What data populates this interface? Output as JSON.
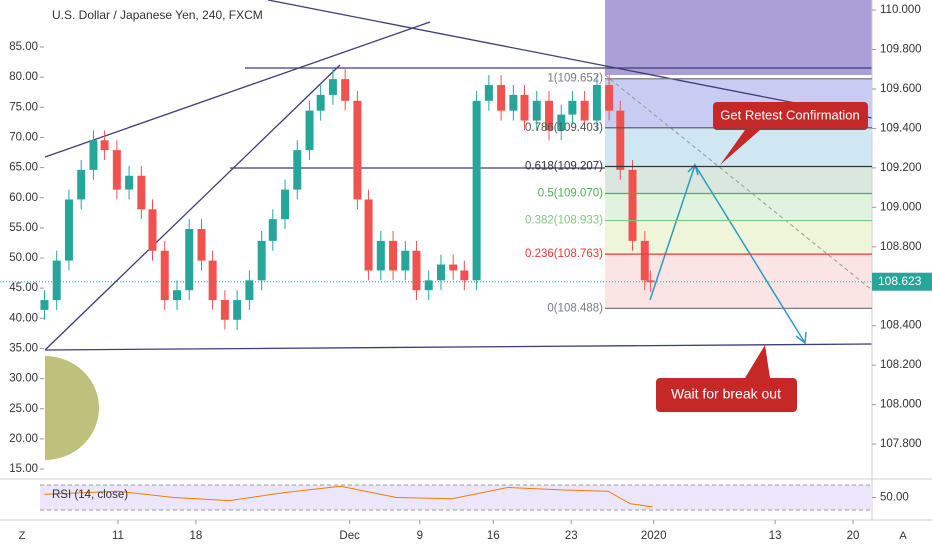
{
  "chart_data": {
    "type": "candlestick",
    "title": "U.S. Dollar / Japanese Yen, 240, FXCM",
    "up_color": "#26a69a",
    "down_color": "#ef5350",
    "x": [
      -6.6,
      -5.5,
      -4.4,
      -3.3,
      -2.2,
      -1.2,
      -0.1,
      1.0,
      2.1,
      3.1,
      4.2,
      5.3,
      6.4,
      7.5,
      8.5,
      9.6,
      10.7,
      11.8,
      12.9,
      13.9,
      15.0,
      16.1,
      17.2,
      18.2,
      19.3,
      20.4,
      21.5,
      22.5,
      23.6,
      24.7,
      25.8,
      26.8,
      27.9,
      29.0,
      30.1,
      31.1,
      32.2,
      33.3,
      34.4,
      35.5,
      36.5,
      37.6,
      38.7,
      39.8,
      40.8,
      41.9,
      43.0,
      44.1,
      45.1,
      46.2,
      47.3,
      47.8
    ],
    "open": [
      108.48,
      108.53,
      108.73,
      109.04,
      109.19,
      109.34,
      109.29,
      109.09,
      109.16,
      108.99,
      108.78,
      108.53,
      108.58,
      108.89,
      108.73,
      108.53,
      108.43,
      108.53,
      108.63,
      108.83,
      108.94,
      109.09,
      109.29,
      109.49,
      109.57,
      109.65,
      109.54,
      109.04,
      108.68,
      108.83,
      108.68,
      108.78,
      108.58,
      108.63,
      108.71,
      108.68,
      108.63,
      109.54,
      109.62,
      109.49,
      109.57,
      109.44,
      109.54,
      109.39,
      109.47,
      109.54,
      109.44,
      109.62,
      109.49,
      109.19,
      108.83,
      108.63
    ],
    "high": [
      108.58,
      108.78,
      109.09,
      109.24,
      109.39,
      109.39,
      109.34,
      109.21,
      109.21,
      109.04,
      108.83,
      108.63,
      108.94,
      108.94,
      108.78,
      108.58,
      108.58,
      108.68,
      108.88,
      108.99,
      109.14,
      109.34,
      109.54,
      109.62,
      109.7,
      109.7,
      109.59,
      109.09,
      108.88,
      108.88,
      108.83,
      108.83,
      108.68,
      108.76,
      108.76,
      108.73,
      109.59,
      109.67,
      109.67,
      109.62,
      109.62,
      109.59,
      109.59,
      109.52,
      109.59,
      109.59,
      109.67,
      109.67,
      109.54,
      109.24,
      108.88,
      108.68
    ],
    "low": [
      108.43,
      108.48,
      108.68,
      108.99,
      109.14,
      109.24,
      109.04,
      109.04,
      108.94,
      108.73,
      108.48,
      108.48,
      108.53,
      108.68,
      108.48,
      108.38,
      108.38,
      108.48,
      108.58,
      108.78,
      108.89,
      109.04,
      109.24,
      109.44,
      109.52,
      109.49,
      108.99,
      108.63,
      108.63,
      108.63,
      108.63,
      108.53,
      108.53,
      108.58,
      108.63,
      108.58,
      108.58,
      109.49,
      109.44,
      109.44,
      109.39,
      109.39,
      109.34,
      109.34,
      109.42,
      109.39,
      109.39,
      109.44,
      109.14,
      108.78,
      108.58,
      108.57
    ],
    "close": [
      108.53,
      108.73,
      109.04,
      109.19,
      109.34,
      109.29,
      109.09,
      109.16,
      108.99,
      108.78,
      108.53,
      108.58,
      108.89,
      108.73,
      108.53,
      108.43,
      108.53,
      108.63,
      108.83,
      108.94,
      109.09,
      109.29,
      109.49,
      109.57,
      109.65,
      109.54,
      109.04,
      108.68,
      108.83,
      108.68,
      108.78,
      108.58,
      108.63,
      108.71,
      108.68,
      108.63,
      109.54,
      109.62,
      109.49,
      109.57,
      109.44,
      109.54,
      109.39,
      109.47,
      109.54,
      109.44,
      109.62,
      109.49,
      109.19,
      108.83,
      108.63,
      108.62
    ],
    "xlim": [
      -7,
      67.7
    ],
    "xticks": [
      {
        "value": 0,
        "label": "11"
      },
      {
        "value": 7,
        "label": "18"
      },
      {
        "value": 20.8,
        "label": "Dec"
      },
      {
        "value": 27.1,
        "label": "9"
      },
      {
        "value": 33.7,
        "label": "16"
      },
      {
        "value": 40.7,
        "label": "23"
      },
      {
        "value": 48.1,
        "label": "2020"
      },
      {
        "value": 59,
        "label": "13"
      },
      {
        "value": 66,
        "label": "20"
      }
    ],
    "ylim": [
      107.628,
      110.051
    ],
    "yticks": [
      {
        "value": 110,
        "label": "110.000"
      },
      {
        "value": 109.8,
        "label": "109.800"
      },
      {
        "value": 109.6,
        "label": "109.600"
      },
      {
        "value": 109.4,
        "label": "109.400"
      },
      {
        "value": 109.2,
        "label": "109.200"
      },
      {
        "value": 109,
        "label": "109.000"
      },
      {
        "value": 108.8,
        "label": "108.800"
      },
      {
        "value": 108.6,
        "label": "108.600"
      },
      {
        "value": 108.4,
        "label": "108.400"
      },
      {
        "value": 108.2,
        "label": "108.200"
      },
      {
        "value": 108,
        "label": "108.000"
      },
      {
        "value": 107.8,
        "label": "107.800"
      }
    ],
    "y2lim": [
      13.51,
      92.8
    ],
    "y2ticks": [
      {
        "value": 85,
        "label": "85.00"
      },
      {
        "value": 80,
        "label": "80.00"
      },
      {
        "value": 75,
        "label": "75.00"
      },
      {
        "value": 70,
        "label": "70.00"
      },
      {
        "value": 65,
        "label": "65.00"
      },
      {
        "value": 60,
        "label": "60.00"
      },
      {
        "value": 55,
        "label": "55.00"
      },
      {
        "value": 50,
        "label": "50.00"
      },
      {
        "value": 45,
        "label": "45.00"
      },
      {
        "value": 40,
        "label": "40.00"
      },
      {
        "value": 35,
        "label": "35.00"
      },
      {
        "value": 30,
        "label": "30.00"
      },
      {
        "value": 25,
        "label": "25.00"
      },
      {
        "value": 20,
        "label": "20.00"
      },
      {
        "value": 15,
        "label": "15.00"
      }
    ],
    "last_price": {
      "value": 108.623,
      "label": "108.623"
    },
    "fib_levels": [
      {
        "value": 109.652,
        "label": "1(109.652)",
        "color": "#787b86",
        "fill": "#c9ccf2"
      },
      {
        "value": 109.403,
        "label": "0.786(109.403)",
        "color": "#555555",
        "fill": "#cfe6f3"
      },
      {
        "value": 109.207,
        "label": "0.618(109.207)",
        "color": "#333333",
        "fill": "#d9e7df"
      },
      {
        "value": 109.07,
        "label": "0.5(109.070)",
        "color": "#4caf50",
        "fill": "#e1f3e0"
      },
      {
        "value": 108.933,
        "label": "0.382(108.933)",
        "color": "#81c784",
        "fill": "#eef5d9"
      },
      {
        "value": 108.763,
        "label": "0.236(108.763)",
        "color": "#e53935",
        "fill": "#fbe4e4"
      },
      {
        "value": 108.488,
        "label": "0(108.488)",
        "color": "#787b86"
      }
    ],
    "annotations": [
      "Get Retest Confirmation",
      "Wait for break out"
    ],
    "rsi": {
      "title": "RSI (14, close)",
      "color": "#f57c00",
      "x": [
        -6.6,
        0,
        5,
        10,
        15,
        20,
        25,
        30,
        35,
        40,
        44,
        46,
        48
      ],
      "values": [
        55,
        60,
        50,
        45,
        58,
        68,
        50,
        48,
        66,
        62,
        60,
        40,
        35
      ],
      "ylim": [
        17.2,
        78
      ],
      "yticks": [
        {
          "value": 50,
          "label": "50.00"
        }
      ],
      "bands": [
        70,
        30
      ]
    },
    "ui": {
      "left_button": "Z",
      "right_button": "A"
    }
  }
}
